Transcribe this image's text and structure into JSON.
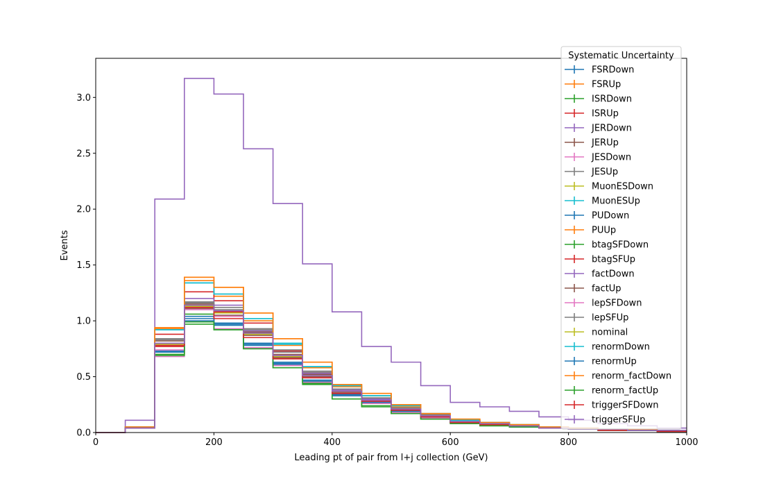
{
  "chart_data": {
    "type": "step",
    "xlabel": "Leading pt of pair from l+j collection (GeV)",
    "ylabel": "Events",
    "xlim": [
      0,
      1000
    ],
    "ylim": [
      0,
      3.35
    ],
    "xticks": [
      "0",
      "200",
      "400",
      "600",
      "800",
      "1000"
    ],
    "yticks": [
      "0.0",
      "0.5",
      "1.0",
      "1.5",
      "2.0",
      "2.5",
      "3.0"
    ],
    "bin_edges": [
      0,
      50,
      100,
      150,
      200,
      250,
      300,
      350,
      400,
      450,
      500,
      550,
      600,
      650,
      700,
      750,
      800,
      850,
      900,
      950,
      1000
    ],
    "grid": false,
    "legend": {
      "title": "Systematic Uncertainty",
      "placement": "top-right"
    },
    "series": [
      {
        "name": "FSRDown",
        "color": "#1f77b4",
        "values": [
          0,
          0.04,
          0.72,
          1.02,
          0.96,
          0.78,
          0.61,
          0.45,
          0.33,
          0.27,
          0.19,
          0.14,
          0.09,
          0.07,
          0.06,
          0.04,
          0.03,
          0.02,
          0.02,
          0.01
        ]
      },
      {
        "name": "FSRUp",
        "color": "#ff7f0e",
        "values": [
          0,
          0.05,
          0.93,
          1.36,
          1.22,
          1.0,
          0.78,
          0.58,
          0.41,
          0.33,
          0.23,
          0.16,
          0.11,
          0.09,
          0.07,
          0.05,
          0.04,
          0.03,
          0.02,
          0.02
        ]
      },
      {
        "name": "ISRDown",
        "color": "#2ca02c",
        "values": [
          0,
          0.04,
          0.7,
          1.06,
          0.98,
          0.8,
          0.62,
          0.46,
          0.34,
          0.27,
          0.19,
          0.14,
          0.09,
          0.07,
          0.06,
          0.04,
          0.03,
          0.02,
          0.02,
          0.01
        ]
      },
      {
        "name": "ISRUp",
        "color": "#d62728",
        "values": [
          0,
          0.05,
          0.88,
          1.26,
          1.18,
          0.98,
          0.73,
          0.54,
          0.39,
          0.31,
          0.22,
          0.16,
          0.1,
          0.08,
          0.06,
          0.05,
          0.04,
          0.03,
          0.02,
          0.02
        ]
      },
      {
        "name": "JERDown",
        "color": "#9467bd",
        "values": [
          0,
          0.04,
          0.78,
          1.2,
          1.14,
          0.91,
          0.72,
          0.53,
          0.38,
          0.3,
          0.21,
          0.15,
          0.1,
          0.08,
          0.06,
          0.05,
          0.03,
          0.03,
          0.02,
          0.02
        ]
      },
      {
        "name": "JERUp",
        "color": "#8c564b",
        "values": [
          0,
          0.04,
          0.82,
          1.15,
          1.09,
          0.9,
          0.7,
          0.52,
          0.37,
          0.29,
          0.21,
          0.15,
          0.1,
          0.08,
          0.06,
          0.04,
          0.03,
          0.03,
          0.02,
          0.02
        ]
      },
      {
        "name": "JESDown",
        "color": "#e377c2",
        "values": [
          0,
          0.04,
          0.68,
          0.99,
          0.93,
          0.76,
          0.6,
          0.45,
          0.33,
          0.26,
          0.18,
          0.13,
          0.09,
          0.07,
          0.05,
          0.04,
          0.03,
          0.02,
          0.02,
          0.01
        ]
      },
      {
        "name": "JESUp",
        "color": "#7f7f7f",
        "values": [
          0,
          0.05,
          0.84,
          1.16,
          1.1,
          0.93,
          0.74,
          0.55,
          0.39,
          0.31,
          0.22,
          0.16,
          0.11,
          0.08,
          0.06,
          0.05,
          0.04,
          0.03,
          0.02,
          0.02
        ]
      },
      {
        "name": "MuonESDown",
        "color": "#bcbd22",
        "values": [
          0,
          0.04,
          0.8,
          1.14,
          1.08,
          0.88,
          0.69,
          0.51,
          0.37,
          0.29,
          0.21,
          0.15,
          0.1,
          0.08,
          0.06,
          0.04,
          0.03,
          0.03,
          0.02,
          0.02
        ]
      },
      {
        "name": "MuonESUp",
        "color": "#17becf",
        "values": [
          0,
          0.05,
          0.92,
          1.34,
          1.24,
          1.02,
          0.79,
          0.59,
          0.42,
          0.33,
          0.24,
          0.17,
          0.11,
          0.09,
          0.07,
          0.05,
          0.04,
          0.03,
          0.02,
          0.02
        ]
      },
      {
        "name": "PUDown",
        "color": "#1f77b4",
        "values": [
          0,
          0.04,
          0.73,
          1.04,
          0.98,
          0.8,
          0.63,
          0.47,
          0.34,
          0.28,
          0.2,
          0.14,
          0.09,
          0.07,
          0.06,
          0.04,
          0.03,
          0.02,
          0.02,
          0.01
        ]
      },
      {
        "name": "PUUp",
        "color": "#ff7f0e",
        "values": [
          0,
          0.05,
          0.94,
          1.39,
          1.3,
          1.07,
          0.84,
          0.63,
          0.43,
          0.35,
          0.25,
          0.17,
          0.12,
          0.09,
          0.07,
          0.05,
          0.04,
          0.03,
          0.03,
          0.02
        ]
      },
      {
        "name": "btagSFDown",
        "color": "#2ca02c",
        "values": [
          0,
          0.04,
          0.69,
          0.97,
          0.92,
          0.75,
          0.58,
          0.44,
          0.3,
          0.24,
          0.17,
          0.12,
          0.08,
          0.06,
          0.05,
          0.04,
          0.03,
          0.02,
          0.02,
          0.01
        ]
      },
      {
        "name": "btagSFUp",
        "color": "#d62728",
        "values": [
          0,
          0.04,
          0.77,
          1.13,
          1.08,
          0.89,
          0.68,
          0.51,
          0.37,
          0.29,
          0.21,
          0.15,
          0.1,
          0.08,
          0.06,
          0.04,
          0.03,
          0.03,
          0.02,
          0.02
        ]
      },
      {
        "name": "factDown",
        "color": "#9467bd",
        "values": [
          0,
          0.11,
          2.09,
          3.17,
          3.03,
          2.54,
          2.05,
          1.51,
          1.08,
          0.77,
          0.63,
          0.42,
          0.27,
          0.23,
          0.19,
          0.14,
          0.11,
          0.08,
          0.06,
          0.04
        ]
      },
      {
        "name": "factUp",
        "color": "#8c564b",
        "values": [
          0,
          0.04,
          0.8,
          1.11,
          1.05,
          0.87,
          0.67,
          0.5,
          0.36,
          0.28,
          0.2,
          0.14,
          0.09,
          0.07,
          0.06,
          0.04,
          0.03,
          0.02,
          0.02,
          0.01
        ]
      },
      {
        "name": "lepSFDown",
        "color": "#e377c2",
        "values": [
          0,
          0.04,
          0.74,
          1.1,
          1.04,
          0.85,
          0.66,
          0.49,
          0.35,
          0.28,
          0.2,
          0.14,
          0.09,
          0.07,
          0.06,
          0.04,
          0.03,
          0.02,
          0.02,
          0.01
        ]
      },
      {
        "name": "lepSFUp",
        "color": "#7f7f7f",
        "values": [
          0,
          0.05,
          0.83,
          1.17,
          1.12,
          0.92,
          0.72,
          0.54,
          0.39,
          0.31,
          0.22,
          0.16,
          0.1,
          0.08,
          0.06,
          0.05,
          0.04,
          0.03,
          0.02,
          0.02
        ]
      },
      {
        "name": "nominal",
        "color": "#bcbd22",
        "values": [
          0,
          0.04,
          0.79,
          1.13,
          1.07,
          0.88,
          0.68,
          0.51,
          0.37,
          0.29,
          0.21,
          0.15,
          0.1,
          0.08,
          0.06,
          0.04,
          0.03,
          0.03,
          0.02,
          0.02
        ]
      },
      {
        "name": "renormDown",
        "color": "#17becf",
        "values": [
          0,
          0.05,
          0.92,
          1.34,
          1.24,
          1.02,
          0.8,
          0.59,
          0.42,
          0.33,
          0.24,
          0.17,
          0.11,
          0.09,
          0.07,
          0.05,
          0.04,
          0.03,
          0.02,
          0.02
        ]
      },
      {
        "name": "renormUp",
        "color": "#1f77b4",
        "values": [
          0,
          0.04,
          0.72,
          1.0,
          0.97,
          0.79,
          0.62,
          0.46,
          0.33,
          0.27,
          0.19,
          0.14,
          0.09,
          0.07,
          0.05,
          0.04,
          0.03,
          0.02,
          0.02,
          0.01
        ]
      },
      {
        "name": "renorm_factDown",
        "color": "#ff7f0e",
        "values": [
          0,
          0.05,
          0.94,
          1.39,
          1.3,
          1.07,
          0.84,
          0.63,
          0.43,
          0.35,
          0.25,
          0.17,
          0.12,
          0.09,
          0.07,
          0.05,
          0.04,
          0.03,
          0.03,
          0.02
        ]
      },
      {
        "name": "renorm_factUp",
        "color": "#2ca02c",
        "values": [
          0,
          0.04,
          0.7,
          0.99,
          0.92,
          0.75,
          0.58,
          0.43,
          0.3,
          0.23,
          0.17,
          0.12,
          0.08,
          0.06,
          0.05,
          0.04,
          0.03,
          0.02,
          0.02,
          0.01
        ]
      },
      {
        "name": "triggerSFDown",
        "color": "#d62728",
        "values": [
          0,
          0.04,
          0.78,
          1.12,
          1.02,
          0.85,
          0.66,
          0.49,
          0.35,
          0.28,
          0.2,
          0.14,
          0.09,
          0.07,
          0.06,
          0.04,
          0.03,
          0.02,
          0.02,
          0.01
        ]
      },
      {
        "name": "triggerSFUp",
        "color": "#9467bd",
        "values": [
          0,
          0.04,
          0.8,
          1.14,
          1.09,
          0.89,
          0.69,
          0.51,
          0.37,
          0.29,
          0.21,
          0.15,
          0.1,
          0.08,
          0.06,
          0.04,
          0.03,
          0.03,
          0.02,
          0.02
        ]
      }
    ]
  }
}
